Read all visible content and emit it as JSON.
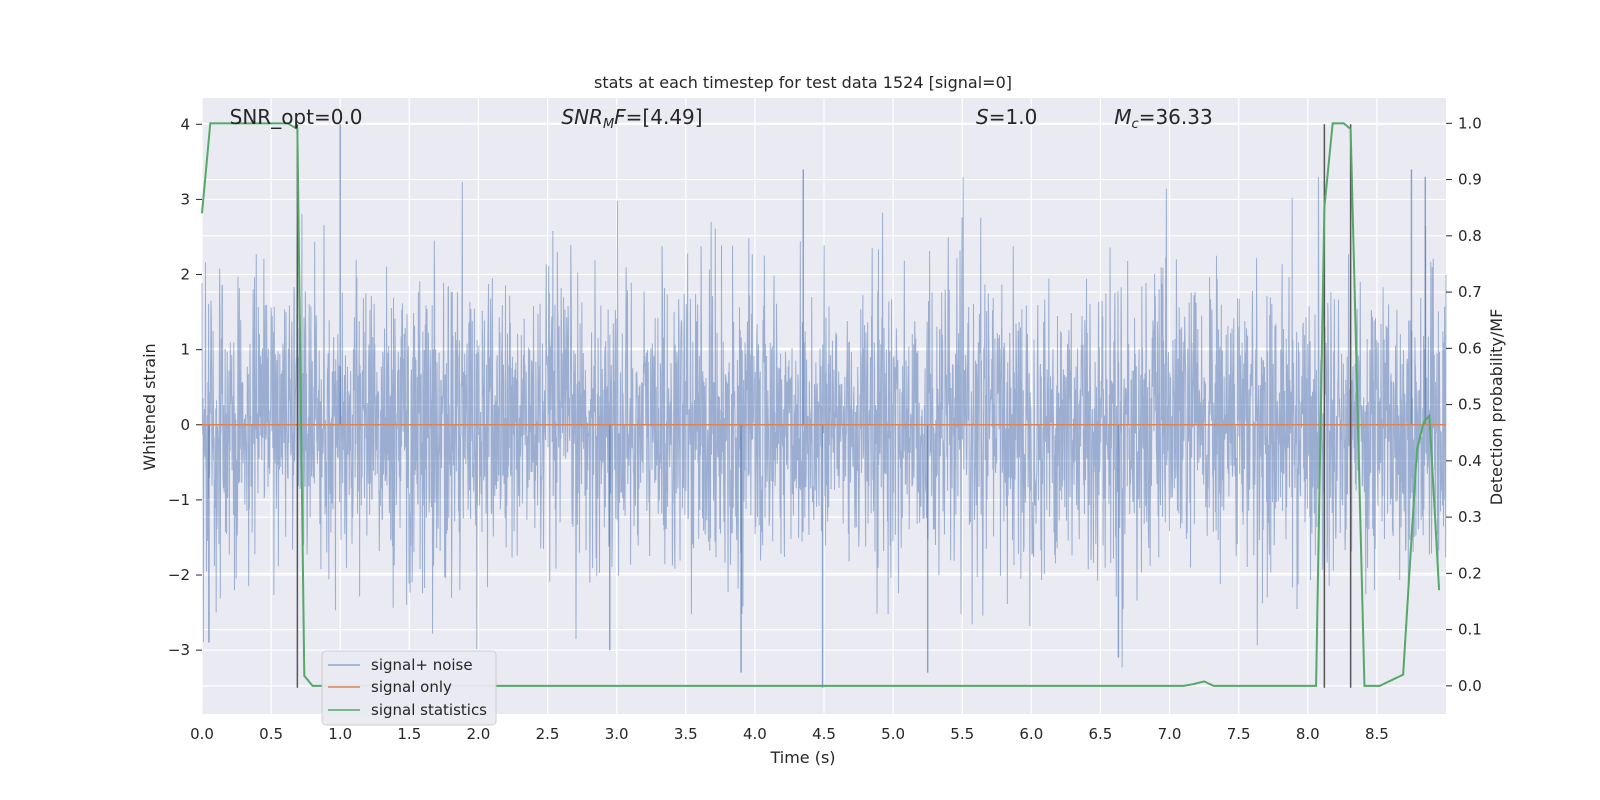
{
  "chart_data": {
    "type": "line",
    "title": "stats at each timestep for test data 1524 [signal=0]",
    "xlabel": "Time (s)",
    "ylabel": "Whitened strain",
    "ylabel_right": "Detection probability/MF",
    "xlim": [
      0,
      9.0
    ],
    "ylim": [
      -3.85,
      4.35
    ],
    "ylim_right": [
      -0.05,
      1.045
    ],
    "x_ticks": [
      0.0,
      0.5,
      1.0,
      1.5,
      2.0,
      2.5,
      3.0,
      3.5,
      4.0,
      4.5,
      5.0,
      5.5,
      6.0,
      6.5,
      7.0,
      7.5,
      8.0,
      8.5
    ],
    "x_tick_labels": [
      "0.0",
      "0.5",
      "1.0",
      "1.5",
      "2.0",
      "2.5",
      "3.0",
      "3.5",
      "4.0",
      "4.5",
      "5.0",
      "5.5",
      "6.0",
      "6.5",
      "7.0",
      "7.5",
      "8.0",
      "8.5"
    ],
    "y_ticks": [
      -3,
      -2,
      -1,
      0,
      1,
      2,
      3,
      4
    ],
    "y_tick_labels": [
      "−3",
      "−2",
      "−1",
      "0",
      "1",
      "2",
      "3",
      "4"
    ],
    "y_right_ticks": [
      0.0,
      0.1,
      0.2,
      0.3,
      0.4,
      0.5,
      0.6,
      0.7,
      0.8,
      0.9,
      1.0
    ],
    "y_right_tick_labels": [
      "0.0",
      "0.1",
      "0.2",
      "0.3",
      "0.4",
      "0.5",
      "0.6",
      "0.7",
      "0.8",
      "0.9",
      "1.0"
    ],
    "grid": true,
    "legend_position": "lower-left",
    "annotations": [
      {
        "text": "SNR_opt=0.0",
        "x": 0.2,
        "y": 4.1
      },
      {
        "text": "SNR_MF=[4.49]",
        "x": 2.6,
        "y": 4.1
      },
      {
        "text": "S=1.0",
        "x": 5.6,
        "y": 4.1
      },
      {
        "text": "M_c=36.33",
        "x": 6.6,
        "y": 4.1
      }
    ],
    "vertical_markers": [
      {
        "x": 0.69,
        "y_range": [
          -3.5,
          4.0
        ]
      },
      {
        "x": 8.12,
        "y_range": [
          -3.5,
          4.0
        ]
      },
      {
        "x": 8.31,
        "y_range": [
          -3.5,
          4.0
        ]
      }
    ],
    "series": [
      {
        "name": "signal+ noise",
        "color": "#4c72b0",
        "kind": "noise",
        "description_stats": {
          "duration_s": 9.0,
          "typical_band": [
            -1.3,
            1.3
          ],
          "extremes": [
            -3.5,
            4.0
          ]
        },
        "spikes": [
          {
            "x": 1.0,
            "y": 4.0
          },
          {
            "x": 4.49,
            "y": -3.5
          },
          {
            "x": 3.9,
            "y": -3.3
          },
          {
            "x": 5.25,
            "y": -3.3
          },
          {
            "x": 4.35,
            "y": 3.4
          },
          {
            "x": 8.75,
            "y": 3.4
          },
          {
            "x": 8.85,
            "y": 3.3
          },
          {
            "x": 6.63,
            "y": -3.1
          },
          {
            "x": 2.95,
            "y": -3.0
          },
          {
            "x": 0.05,
            "y": -2.9
          }
        ]
      },
      {
        "name": "signal only",
        "color": "#dd8452",
        "x": [
          0.0,
          9.0
        ],
        "y": [
          0.0,
          0.0
        ]
      },
      {
        "name": "signal statistics",
        "color": "#55a868",
        "axis": "right",
        "x": [
          0.0,
          0.06,
          0.12,
          0.62,
          0.69,
          0.74,
          0.8,
          7.1,
          7.17,
          7.25,
          7.32,
          8.06,
          8.12,
          8.18,
          8.26,
          8.31,
          8.41,
          8.52,
          8.69,
          8.79,
          8.84,
          8.88,
          8.95
        ],
        "y": [
          0.84,
          1.0,
          1.0,
          1.0,
          0.99,
          0.018,
          0.0,
          0.0,
          0.003,
          0.008,
          0.0,
          0.0,
          0.85,
          1.0,
          1.0,
          0.99,
          0.0,
          0.0,
          0.02,
          0.42,
          0.47,
          0.48,
          0.17
        ]
      }
    ]
  }
}
